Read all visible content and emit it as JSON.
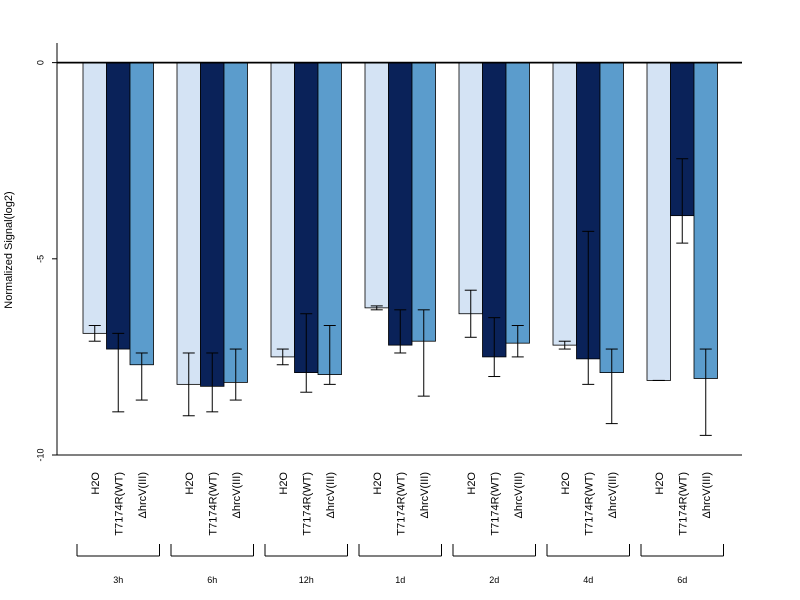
{
  "chart_data": {
    "type": "bar",
    "ylabel": "Normalized Signal(log2)",
    "ylim": [
      -10,
      0.5
    ],
    "yticks": [
      0,
      -5,
      -10
    ],
    "groups": [
      "3h",
      "6h",
      "12h",
      "1d",
      "2d",
      "4d",
      "6d"
    ],
    "series": [
      {
        "name": "H2O",
        "color": "#d4e3f4",
        "values": [
          -6.9,
          -8.2,
          -7.5,
          -6.25,
          -6.4,
          -7.2,
          -8.1
        ],
        "err_low": [
          -7.1,
          -9.0,
          -7.7,
          -6.3,
          -7.0,
          -7.3,
          -8.1
        ],
        "err_high": [
          -6.7,
          -7.4,
          -7.3,
          -6.2,
          -5.8,
          -7.1,
          -8.1
        ]
      },
      {
        "name": "T7174R(WT)",
        "color": "#0a2259",
        "values": [
          -7.3,
          -8.25,
          -7.9,
          -7.2,
          -7.5,
          -7.55,
          -3.9
        ],
        "err_low": [
          -8.9,
          -8.9,
          -8.4,
          -7.4,
          -8.0,
          -8.2,
          -4.6
        ],
        "err_high": [
          -6.9,
          -7.4,
          -6.4,
          -6.3,
          -6.5,
          -4.3,
          -2.45
        ]
      },
      {
        "name": "ΔhrcV(III)",
        "color": "#5b9ccc",
        "values": [
          -7.7,
          -8.15,
          -7.95,
          -7.1,
          -7.15,
          -7.9,
          -8.05
        ],
        "err_low": [
          -8.6,
          -8.6,
          -8.2,
          -8.5,
          -7.5,
          -9.2,
          -9.5
        ],
        "err_high": [
          -7.4,
          -7.3,
          -6.7,
          -6.3,
          -6.7,
          -7.3,
          -7.3
        ]
      }
    ]
  }
}
